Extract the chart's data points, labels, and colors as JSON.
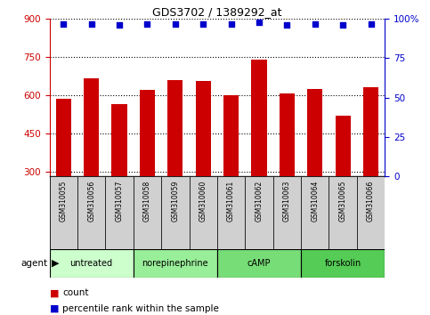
{
  "title": "GDS3702 / 1389292_at",
  "samples": [
    "GSM310055",
    "GSM310056",
    "GSM310057",
    "GSM310058",
    "GSM310059",
    "GSM310060",
    "GSM310061",
    "GSM310062",
    "GSM310063",
    "GSM310064",
    "GSM310065",
    "GSM310066"
  ],
  "bar_values": [
    585,
    665,
    565,
    620,
    660,
    655,
    600,
    740,
    605,
    625,
    520,
    630
  ],
  "dot_values": [
    97,
    97,
    96,
    97,
    97,
    97,
    97,
    98,
    96,
    97,
    96,
    97
  ],
  "ylim_left": [
    280,
    900
  ],
  "ylim_right": [
    0,
    100
  ],
  "yticks_left": [
    300,
    450,
    600,
    750,
    900
  ],
  "yticks_right": [
    0,
    25,
    50,
    75,
    100
  ],
  "bar_color": "#cc0000",
  "dot_color": "#0000cc",
  "background_color": "#ffffff",
  "agents": [
    {
      "label": "untreated",
      "start": 0,
      "end": 3
    },
    {
      "label": "norepinephrine",
      "start": 3,
      "end": 6
    },
    {
      "label": "cAMP",
      "start": 6,
      "end": 9
    },
    {
      "label": "forskolin",
      "start": 9,
      "end": 12
    }
  ],
  "agent_colors": [
    "#ccffcc",
    "#99ee99",
    "#77dd77",
    "#55cc55"
  ],
  "legend_items": [
    {
      "label": "count",
      "color": "#cc0000"
    },
    {
      "label": "percentile rank within the sample",
      "color": "#0000cc"
    }
  ],
  "agent_label": "agent",
  "tick_color_left": "#cc0000",
  "tick_color_right": "#0000cc"
}
